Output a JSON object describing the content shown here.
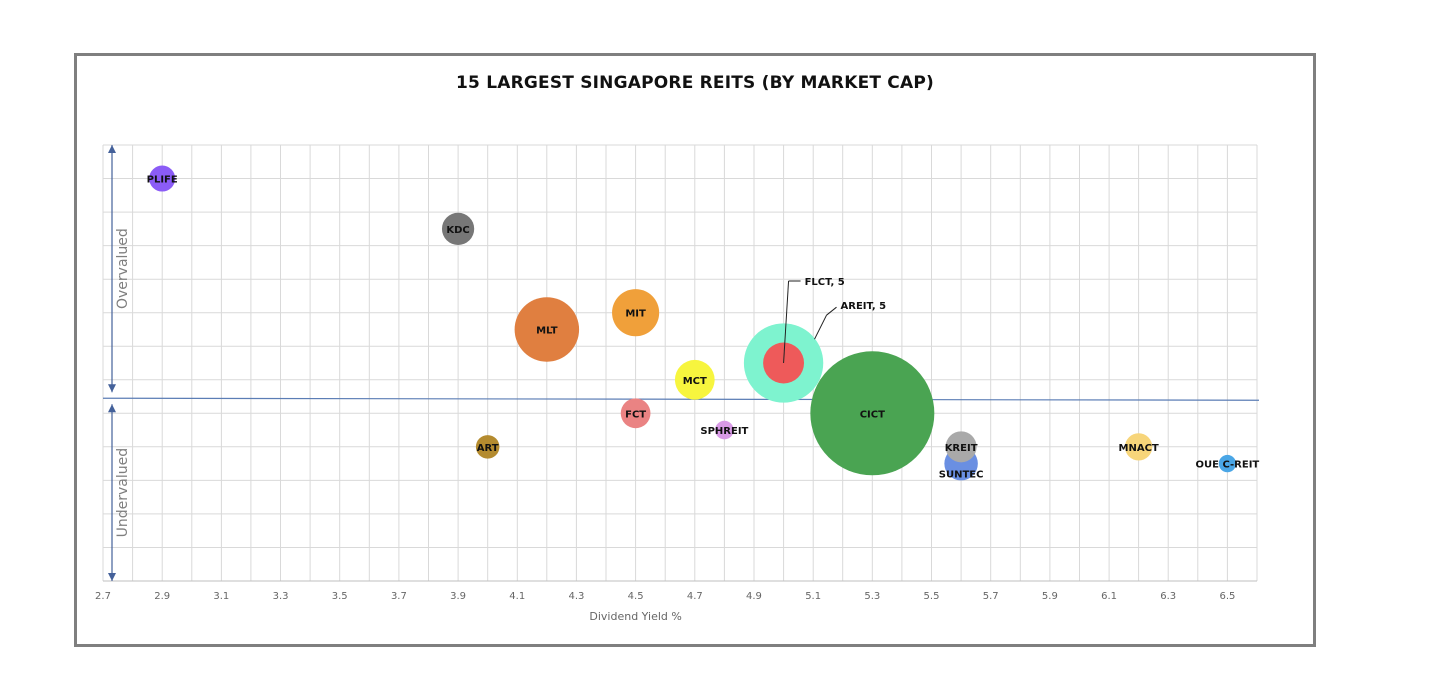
{
  "chart_data": {
    "type": "bubble",
    "title": "15 LARGEST SINGAPORE REITS (BY MARKET CAP)",
    "xlabel": "Dividend Yield %",
    "ylabel": "",
    "xlim": [
      2.7,
      6.6
    ],
    "x_ticks": [
      "2.7",
      "2.9",
      "3.1",
      "3.3",
      "3.5",
      "3.7",
      "3.9",
      "4.1",
      "4.3",
      "4.5",
      "4.7",
      "4.9",
      "5.1",
      "5.3",
      "5.5",
      "5.7",
      "5.9",
      "6.1",
      "6.3",
      "6.5"
    ],
    "ylim": [
      0,
      13
    ],
    "grid": true,
    "divider_y": 5.45,
    "region_labels": {
      "upper": "Overvalued",
      "lower": "Undervalued"
    },
    "series": [
      {
        "name": "PLIFE",
        "x": 2.9,
        "y": 12.0,
        "size": 0.21,
        "color": "#8b5cf6"
      },
      {
        "name": "KDC",
        "x": 3.9,
        "y": 10.5,
        "size": 0.26,
        "color": "#777777"
      },
      {
        "name": "MLT",
        "x": 4.2,
        "y": 7.5,
        "size": 0.52,
        "color": "#e07f40"
      },
      {
        "name": "MIT",
        "x": 4.5,
        "y": 8.0,
        "size": 0.38,
        "color": "#f0a03a"
      },
      {
        "name": "MCT",
        "x": 4.7,
        "y": 6.0,
        "size": 0.32,
        "color": "#f7f53e"
      },
      {
        "name": "FCT",
        "x": 4.5,
        "y": 5.0,
        "size": 0.24,
        "color": "#ea8383"
      },
      {
        "name": "SPHREIT",
        "x": 4.8,
        "y": 4.5,
        "size": 0.15,
        "color": "#d89ae6"
      },
      {
        "name": "ART",
        "x": 4.0,
        "y": 4.0,
        "size": 0.19,
        "color": "#b48b2f"
      },
      {
        "name": "AREIT",
        "x": 5.0,
        "y": 6.5,
        "size": 0.64,
        "color": "#7ef3cf",
        "callout": "AREIT, 5"
      },
      {
        "name": "FLCT",
        "x": 5.0,
        "y": 6.5,
        "size": 0.33,
        "color": "#ee5a5a",
        "callout": "FLCT, 5"
      },
      {
        "name": "CICT",
        "x": 5.3,
        "y": 5.0,
        "size": 1.0,
        "color": "#4aa452"
      },
      {
        "name": "SUNTEC",
        "x": 5.6,
        "y": 3.5,
        "size": 0.27,
        "color": "#6a8fe2"
      },
      {
        "name": "KREIT",
        "x": 5.6,
        "y": 4.0,
        "size": 0.25,
        "color": "#a9a9a9"
      },
      {
        "name": "MNACT",
        "x": 6.2,
        "y": 4.0,
        "size": 0.22,
        "color": "#f7d57a"
      },
      {
        "name": "OUE C-REIT",
        "x": 6.5,
        "y": 3.5,
        "size": 0.14,
        "color": "#4aa6e6"
      }
    ]
  }
}
